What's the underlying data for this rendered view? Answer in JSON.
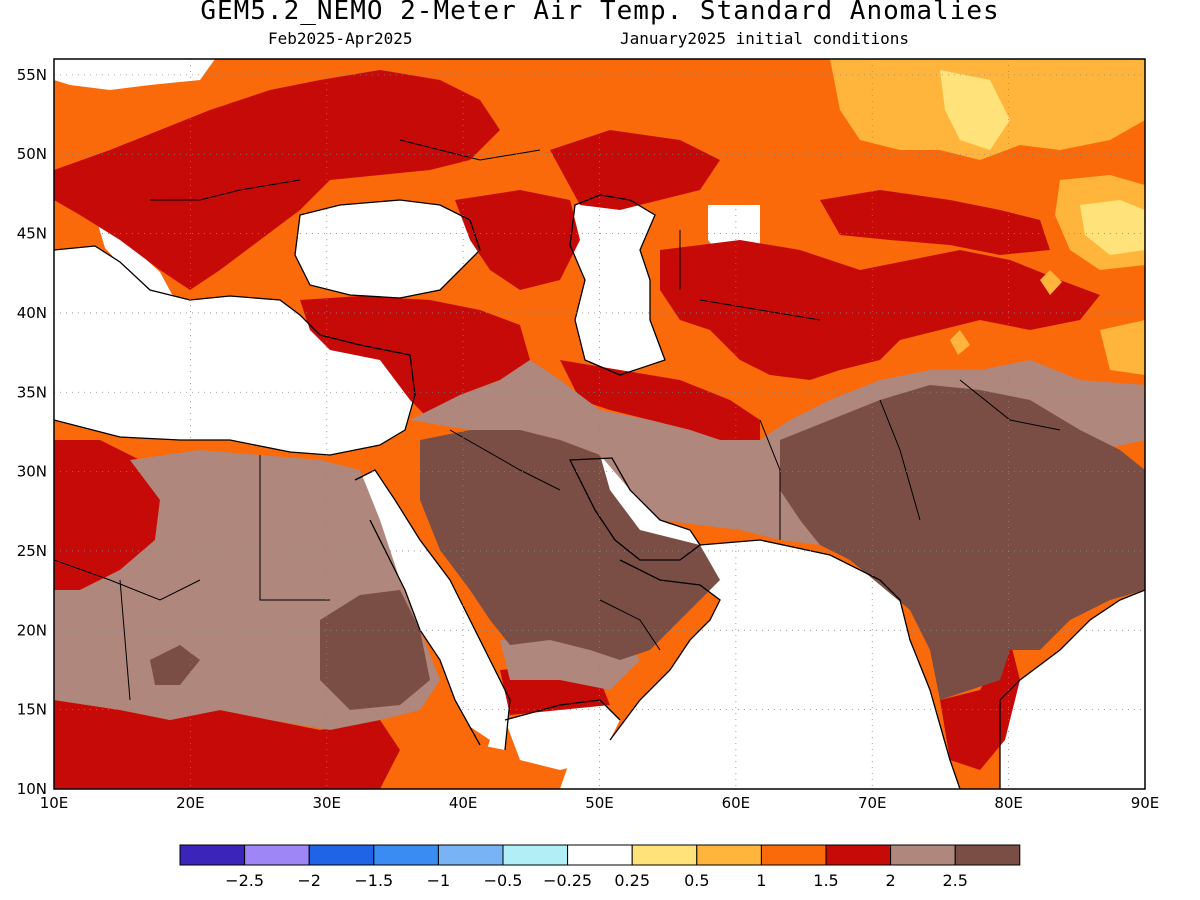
{
  "header": {
    "title": "GEM5.2_NEMO 2-Meter Air Temp. Standard Anomalies",
    "period": "Feb2025-Apr2025",
    "init": "January2025 initial conditions"
  },
  "map": {
    "lon_range": [
      10,
      90
    ],
    "lat_range": [
      10,
      56
    ],
    "lon_ticks": [
      "10E",
      "20E",
      "30E",
      "40E",
      "50E",
      "60E",
      "70E",
      "80E",
      "90E"
    ],
    "lat_ticks": [
      "55N",
      "50N",
      "45N",
      "40N",
      "35N",
      "30N",
      "25N",
      "20N",
      "15N",
      "10N"
    ],
    "lon_tick_values": [
      10,
      20,
      30,
      40,
      50,
      60,
      70,
      80,
      90
    ],
    "lat_tick_values": [
      55,
      50,
      45,
      40,
      35,
      30,
      25,
      20,
      15,
      10
    ],
    "grid": "dotted",
    "ocean_color": "#ffffff"
  },
  "colorbar": {
    "colors": [
      "#3a24b9",
      "#9f86f6",
      "#1f64e6",
      "#3b8cf2",
      "#78b4f5",
      "#b2eef5",
      "#ffffff",
      "#ffe27a",
      "#ffb53c",
      "#fa6a0a",
      "#c50a08",
      "#b0877c",
      "#7a4e45"
    ],
    "labels": [
      "−2.5",
      "−2",
      "−1.5",
      "−1",
      "−0.5",
      "−0.25",
      "0.25",
      "0.5",
      "1",
      "1.5",
      "2",
      "2.5"
    ]
  }
}
